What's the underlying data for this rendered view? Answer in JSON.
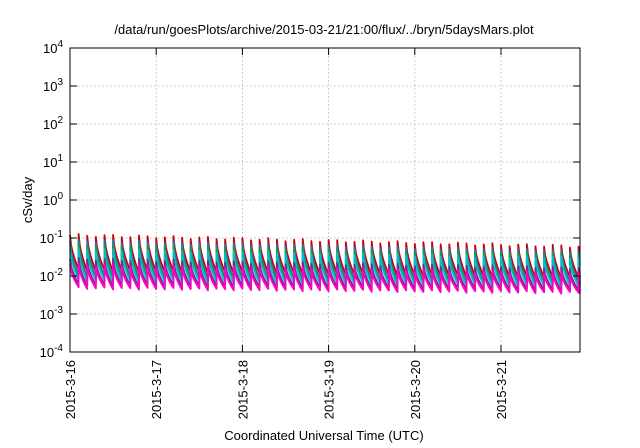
{
  "chart_data": {
    "type": "line",
    "title": "/data/run/goesPlots/archive/2015-03-21/21:00/flux/../bryn/5daysMars.plot",
    "xlabel": "Coordinated Universal Time (UTC)",
    "ylabel": "cSv/day",
    "yscale": "log",
    "ylim": [
      0.0001,
      10000
    ],
    "y_ticks": [
      {
        "base": "10",
        "exp": "-4",
        "value": 0.0001
      },
      {
        "base": "10",
        "exp": "-3",
        "value": 0.001
      },
      {
        "base": "10",
        "exp": "-2",
        "value": 0.01
      },
      {
        "base": "10",
        "exp": "-1",
        "value": 0.1
      },
      {
        "base": "10",
        "exp": "0",
        "value": 1
      },
      {
        "base": "10",
        "exp": "1",
        "value": 10
      },
      {
        "base": "10",
        "exp": "2",
        "value": 100
      },
      {
        "base": "10",
        "exp": "3",
        "value": 1000
      },
      {
        "base": "10",
        "exp": "4",
        "value": 10000
      }
    ],
    "xlim": [
      "2015-03-16",
      "2015-03-21 22:00"
    ],
    "x_ticks": [
      "2015-3-16",
      "2015-3-17",
      "2015-3-18",
      "2015-3-19",
      "2015-3-20",
      "2015-3-21"
    ],
    "grid": true,
    "legend": "none",
    "pattern": "sawtooth",
    "sawtooth_cycles_per_day": 10,
    "series": [
      {
        "color": "#cc0000",
        "peak_start": 0.12,
        "peak_end": 0.06,
        "trough_start": 0.014,
        "trough_end": 0.009
      },
      {
        "color": "#1e6fd0",
        "peak_start": 0.085,
        "peak_end": 0.045,
        "trough_start": 0.01,
        "trough_end": 0.0068
      },
      {
        "color": "#1a9a3a",
        "peak_start": 0.068,
        "peak_end": 0.038,
        "trough_start": 0.0085,
        "trough_end": 0.0058
      },
      {
        "color": "#00c0d0",
        "peak_start": 0.05,
        "peak_end": 0.03,
        "trough_start": 0.0075,
        "trough_end": 0.0052
      },
      {
        "color": "#7a2a8a",
        "peak_start": 0.028,
        "peak_end": 0.016,
        "trough_start": 0.0058,
        "trough_end": 0.0042
      },
      {
        "color": "#ff00c8",
        "peak_start": 0.02,
        "peak_end": 0.012,
        "trough_start": 0.0048,
        "trough_end": 0.0036
      }
    ]
  }
}
